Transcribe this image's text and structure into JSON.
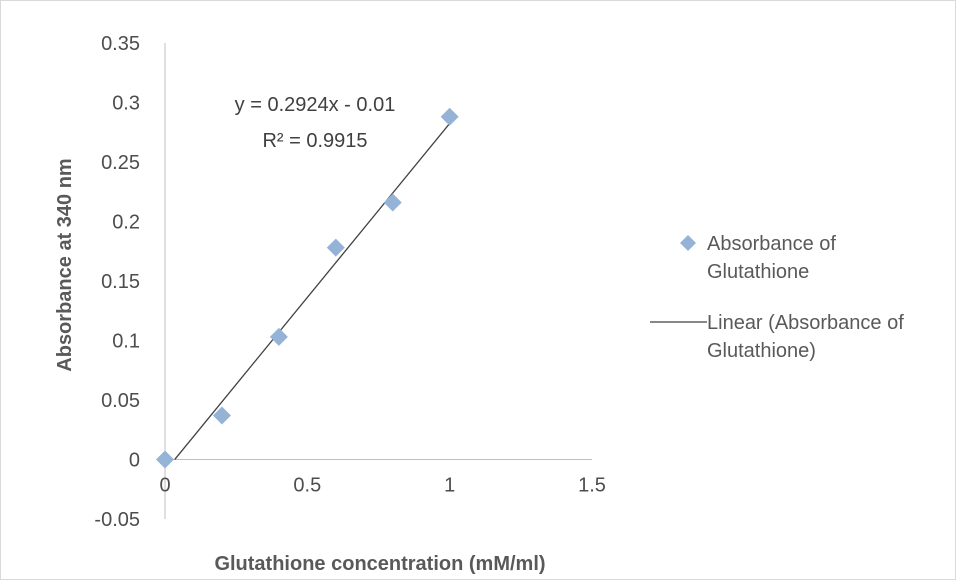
{
  "chart_data": {
    "type": "scatter",
    "xlabel": "Glutathione concentration (mM/ml)",
    "ylabel": "Absorbance at 340 nm",
    "xlim": [
      0,
      1.5
    ],
    "ylim": [
      -0.05,
      0.35
    ],
    "x_ticks": [
      "0",
      "0.5",
      "1",
      "1.5"
    ],
    "y_ticks": [
      "0.35",
      "0.3",
      "0.25",
      "0.2",
      "0.15",
      "0.1",
      "0.05",
      "0",
      "-0.05"
    ],
    "grid": false,
    "legend_position": "right",
    "series": [
      {
        "name": "Absorbance of Glutathione",
        "color": "#95b3d7",
        "marker": "diamond",
        "x": [
          0,
          0.2,
          0.4,
          0.6,
          0.8,
          1.0
        ],
        "y": [
          0.0,
          0.037,
          0.103,
          0.178,
          0.216,
          0.288
        ]
      }
    ],
    "trendline": {
      "name": "Linear (Absorbance of Glutathione)",
      "color": "#404040",
      "slope": 0.2924,
      "intercept": -0.01,
      "equation": "y = 0.2924x - 0.01",
      "r_squared": "R² = 0.9915"
    }
  }
}
